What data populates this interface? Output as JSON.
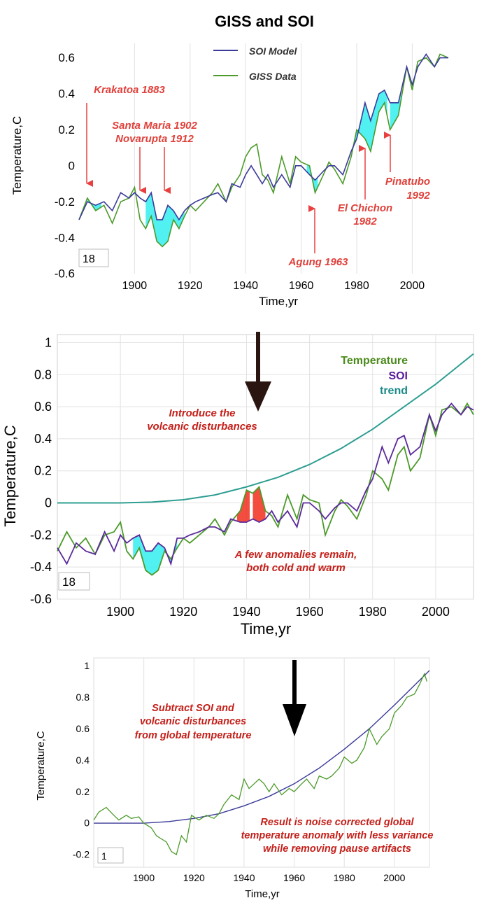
{
  "title": "GISS and SOI",
  "colors": {
    "giss": "#4c9a2a",
    "soi": "#3b3b9a",
    "trend": "#2e9e92",
    "cyan_fill": "#3ef0f0",
    "red_fill": "#f23a2a",
    "annotation_red": "#e0403a",
    "annotation_dark_red": "#c4201a",
    "legend_temperature": "#4a8a1a",
    "legend_soi": "#5a1a9a",
    "legend_trend": "#1a8a8a"
  },
  "chart_data": [
    {
      "id": "panel1",
      "type": "line",
      "xlabel": "Time,yr",
      "ylabel": "Temperature,C",
      "xlim": [
        1880,
        2014
      ],
      "ylim": [
        -0.6,
        0.68
      ],
      "xticks": [
        "1900",
        "1920",
        "1940",
        "1960",
        "1980",
        "2000"
      ],
      "yticks": [
        "0.6",
        "0.4",
        "0.2",
        "0",
        "-0.2",
        "-0.4",
        "-0.6"
      ],
      "box_value": "18",
      "legend": [
        "SOI Model",
        "GISS Data"
      ],
      "series": [
        {
          "name": "GISS Data",
          "x": [
            1880,
            1883,
            1886,
            1889,
            1892,
            1895,
            1898,
            1900,
            1902,
            1904,
            1906,
            1908,
            1910,
            1912,
            1914,
            1916,
            1918,
            1920,
            1922,
            1925,
            1928,
            1930,
            1933,
            1935,
            1938,
            1940,
            1942,
            1944,
            1946,
            1948,
            1950,
            1953,
            1956,
            1958,
            1960,
            1963,
            1965,
            1968,
            1970,
            1972,
            1975,
            1978,
            1980,
            1983,
            1985,
            1988,
            1990,
            1992,
            1995,
            1998,
            2000,
            2002,
            2005,
            2008,
            2010,
            2013
          ],
          "values": [
            -0.3,
            -0.18,
            -0.25,
            -0.22,
            -0.32,
            -0.2,
            -0.18,
            -0.12,
            -0.3,
            -0.35,
            -0.28,
            -0.42,
            -0.45,
            -0.42,
            -0.3,
            -0.35,
            -0.28,
            -0.22,
            -0.25,
            -0.2,
            -0.15,
            -0.1,
            -0.2,
            -0.12,
            -0.05,
            0.05,
            0.1,
            0.12,
            -0.05,
            -0.08,
            -0.15,
            0.05,
            -0.1,
            0.05,
            0.02,
            0.0,
            -0.15,
            -0.05,
            0.02,
            -0.02,
            -0.1,
            0.05,
            0.2,
            0.15,
            0.08,
            0.3,
            0.35,
            0.2,
            0.28,
            0.55,
            0.42,
            0.58,
            0.6,
            0.55,
            0.62,
            0.6
          ]
        },
        {
          "name": "SOI Model",
          "x": [
            1880,
            1883,
            1886,
            1889,
            1892,
            1895,
            1898,
            1900,
            1902,
            1904,
            1906,
            1908,
            1910,
            1912,
            1914,
            1916,
            1918,
            1920,
            1922,
            1925,
            1928,
            1930,
            1933,
            1935,
            1938,
            1940,
            1942,
            1944,
            1946,
            1948,
            1950,
            1953,
            1956,
            1958,
            1960,
            1963,
            1965,
            1968,
            1970,
            1972,
            1975,
            1978,
            1980,
            1983,
            1985,
            1988,
            1990,
            1992,
            1995,
            1998,
            2000,
            2002,
            2005,
            2008,
            2010,
            2013
          ],
          "values": [
            -0.3,
            -0.2,
            -0.22,
            -0.2,
            -0.25,
            -0.15,
            -0.18,
            -0.15,
            -0.18,
            -0.2,
            -0.15,
            -0.3,
            -0.3,
            -0.22,
            -0.25,
            -0.3,
            -0.25,
            -0.22,
            -0.2,
            -0.18,
            -0.16,
            -0.15,
            -0.2,
            -0.1,
            -0.12,
            -0.05,
            0.0,
            -0.05,
            -0.1,
            -0.05,
            -0.12,
            -0.05,
            -0.12,
            0.0,
            0.0,
            -0.05,
            -0.08,
            -0.03,
            0.0,
            0.0,
            -0.05,
            0.08,
            0.15,
            0.35,
            0.25,
            0.4,
            0.42,
            0.35,
            0.35,
            0.55,
            0.45,
            0.55,
            0.62,
            0.55,
            0.6,
            0.6
          ]
        }
      ],
      "annotations": [
        {
          "lines": [
            "Krakatoa 1883"
          ]
        },
        {
          "lines": [
            "Santa Maria 1902",
            "Novarupta 1912"
          ]
        },
        {
          "lines": [
            "Agung 1963"
          ]
        },
        {
          "lines": [
            "El Chichon",
            "1982"
          ]
        },
        {
          "lines": [
            "Pinatubo",
            "1992"
          ]
        }
      ]
    },
    {
      "id": "panel2",
      "type": "line",
      "xlabel": "Time,yr",
      "ylabel": "Temperature,C",
      "xlim": [
        1880,
        2012
      ],
      "ylim": [
        -0.6,
        1.05
      ],
      "xticks": [
        "1900",
        "1920",
        "1940",
        "1960",
        "1980",
        "2000"
      ],
      "yticks": [
        "1",
        "0.8",
        "0.6",
        "0.4",
        "0.2",
        "0",
        "-0.2",
        "-0.4",
        "-0.6"
      ],
      "box_value": "18",
      "legend": [
        "Temperature",
        "SOI",
        "trend"
      ],
      "series": [
        {
          "name": "Temperature",
          "x": [
            1880,
            1883,
            1886,
            1889,
            1892,
            1895,
            1898,
            1900,
            1902,
            1904,
            1906,
            1908,
            1910,
            1912,
            1914,
            1916,
            1918,
            1920,
            1922,
            1925,
            1928,
            1930,
            1933,
            1935,
            1938,
            1940,
            1942,
            1944,
            1946,
            1948,
            1950,
            1953,
            1956,
            1958,
            1960,
            1963,
            1965,
            1968,
            1970,
            1972,
            1975,
            1978,
            1980,
            1983,
            1985,
            1988,
            1990,
            1992,
            1995,
            1998,
            2000,
            2002,
            2005,
            2008,
            2010,
            2012
          ],
          "values": [
            -0.3,
            -0.18,
            -0.28,
            -0.22,
            -0.32,
            -0.2,
            -0.18,
            -0.12,
            -0.3,
            -0.35,
            -0.28,
            -0.42,
            -0.45,
            -0.42,
            -0.3,
            -0.35,
            -0.28,
            -0.22,
            -0.25,
            -0.2,
            -0.15,
            -0.1,
            -0.2,
            -0.12,
            -0.05,
            0.08,
            0.06,
            0.1,
            -0.05,
            -0.08,
            -0.15,
            0.05,
            -0.1,
            0.05,
            0.02,
            0.0,
            -0.2,
            -0.05,
            0.02,
            -0.02,
            -0.1,
            0.05,
            0.2,
            0.15,
            0.08,
            0.3,
            0.35,
            0.2,
            0.28,
            0.55,
            0.42,
            0.58,
            0.6,
            0.55,
            0.62,
            0.55
          ]
        },
        {
          "name": "SOI",
          "x": [
            1880,
            1883,
            1886,
            1889,
            1892,
            1895,
            1898,
            1900,
            1902,
            1904,
            1906,
            1908,
            1910,
            1912,
            1914,
            1916,
            1918,
            1920,
            1922,
            1925,
            1928,
            1930,
            1933,
            1935,
            1938,
            1940,
            1942,
            1944,
            1946,
            1948,
            1950,
            1953,
            1956,
            1958,
            1960,
            1963,
            1965,
            1968,
            1970,
            1972,
            1975,
            1978,
            1980,
            1983,
            1985,
            1988,
            1990,
            1992,
            1995,
            1998,
            2000,
            2002,
            2005,
            2008,
            2010,
            2012
          ],
          "values": [
            -0.28,
            -0.38,
            -0.25,
            -0.3,
            -0.32,
            -0.18,
            -0.3,
            -0.2,
            -0.25,
            -0.22,
            -0.2,
            -0.3,
            -0.3,
            -0.25,
            -0.28,
            -0.38,
            -0.22,
            -0.22,
            -0.2,
            -0.18,
            -0.15,
            -0.15,
            -0.18,
            -0.1,
            -0.12,
            -0.12,
            -0.1,
            -0.12,
            -0.1,
            -0.05,
            -0.12,
            -0.05,
            -0.15,
            0.0,
            0.0,
            -0.05,
            -0.1,
            -0.03,
            0.0,
            0.0,
            -0.05,
            0.08,
            0.15,
            0.35,
            0.25,
            0.4,
            0.42,
            0.3,
            0.35,
            0.55,
            0.45,
            0.55,
            0.62,
            0.55,
            0.6,
            0.58
          ]
        },
        {
          "name": "trend",
          "x": [
            1880,
            1890,
            1900,
            1910,
            1920,
            1930,
            1940,
            1950,
            1960,
            1970,
            1980,
            1990,
            2000,
            2012
          ],
          "values": [
            0.0,
            0.0,
            0.0,
            0.005,
            0.02,
            0.05,
            0.1,
            0.16,
            0.24,
            0.34,
            0.46,
            0.6,
            0.74,
            0.93
          ]
        }
      ],
      "annotations": [
        {
          "lines": [
            "Introduce the",
            "volcanic disturbances"
          ]
        },
        {
          "lines": [
            "A few anomalies remain,",
            "both cold and warm"
          ]
        }
      ]
    },
    {
      "id": "panel3",
      "type": "line",
      "xlabel": "Time,yr",
      "ylabel": "Temperature,C",
      "xlim": [
        1880,
        2014
      ],
      "ylim": [
        -0.28,
        1.05
      ],
      "xticks": [
        "1900",
        "1920",
        "1940",
        "1960",
        "1980",
        "2000"
      ],
      "yticks": [
        "1",
        "0.8",
        "0.6",
        "0.4",
        "0.2",
        "0",
        "-0.2"
      ],
      "box_value": "1",
      "series": [
        {
          "name": "corrected",
          "x": [
            1880,
            1882,
            1885,
            1888,
            1890,
            1893,
            1895,
            1898,
            1900,
            1903,
            1905,
            1907,
            1909,
            1911,
            1913,
            1915,
            1917,
            1919,
            1922,
            1925,
            1928,
            1930,
            1932,
            1935,
            1938,
            1940,
            1942,
            1944,
            1946,
            1948,
            1950,
            1952,
            1955,
            1958,
            1960,
            1963,
            1965,
            1968,
            1970,
            1973,
            1975,
            1978,
            1980,
            1983,
            1985,
            1988,
            1990,
            1993,
            1995,
            1998,
            2000,
            2003,
            2005,
            2008,
            2010,
            2012,
            2013
          ],
          "values": [
            0.02,
            0.07,
            0.1,
            0.05,
            0.02,
            0.05,
            0.03,
            0.04,
            0.0,
            -0.03,
            -0.08,
            -0.1,
            -0.12,
            -0.18,
            -0.2,
            -0.08,
            -0.12,
            0.05,
            0.02,
            0.05,
            0.03,
            0.06,
            0.12,
            0.18,
            0.15,
            0.28,
            0.22,
            0.25,
            0.28,
            0.25,
            0.2,
            0.25,
            0.18,
            0.22,
            0.2,
            0.25,
            0.28,
            0.22,
            0.3,
            0.28,
            0.3,
            0.35,
            0.42,
            0.38,
            0.4,
            0.48,
            0.6,
            0.5,
            0.55,
            0.6,
            0.7,
            0.75,
            0.8,
            0.82,
            0.88,
            0.95,
            0.9
          ]
        },
        {
          "name": "trend",
          "x": [
            1880,
            1890,
            1900,
            1910,
            1920,
            1930,
            1940,
            1950,
            1960,
            1970,
            1980,
            1990,
            2000,
            2014
          ],
          "values": [
            0.0,
            0.0,
            0.0,
            0.01,
            0.03,
            0.06,
            0.11,
            0.17,
            0.25,
            0.35,
            0.47,
            0.6,
            0.75,
            0.97
          ]
        }
      ],
      "annotations": [
        {
          "lines": [
            "Subtract SOI and",
            "volcanic disturbances",
            "from global temperature"
          ]
        },
        {
          "lines": [
            "Result is noise corrected global",
            "temperature anomaly with less variance",
            "while removing pause artifacts"
          ]
        }
      ]
    }
  ]
}
